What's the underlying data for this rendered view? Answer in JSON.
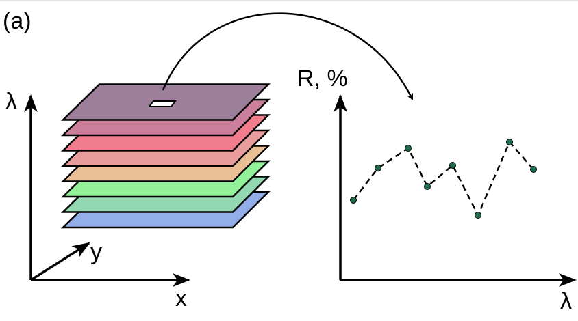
{
  "panel_label": "(a)",
  "cube_axes": {
    "vertical": "λ",
    "depth": "y",
    "horizontal": "x"
  },
  "spectrum_axes": {
    "vertical": "R, %",
    "horizontal": "λ"
  }
}
